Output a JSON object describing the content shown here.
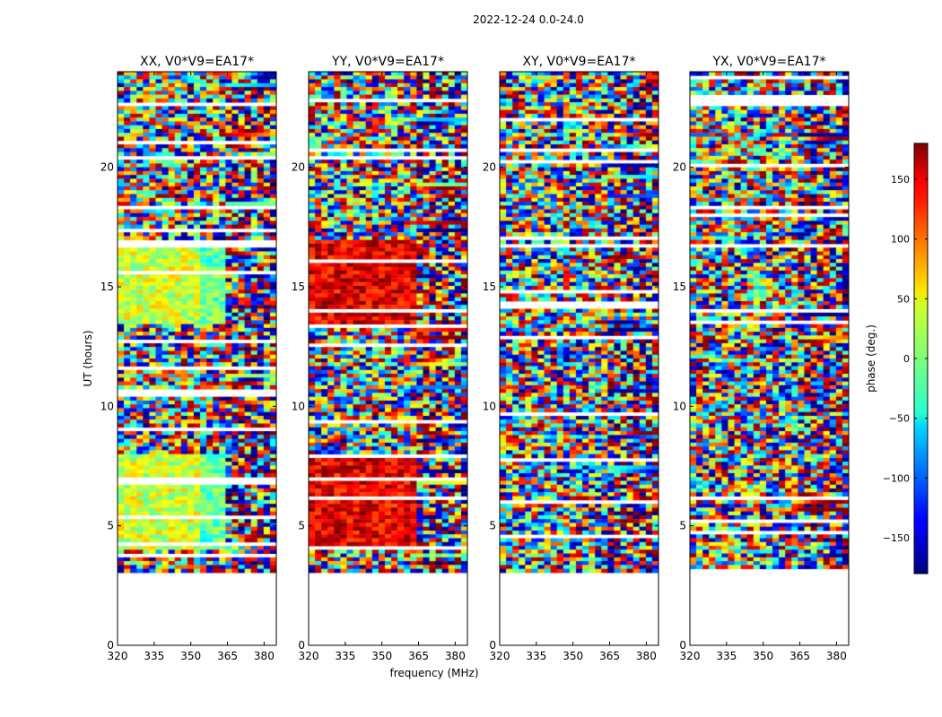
{
  "chart_data": {
    "type": "heatmap",
    "suptitle": "2022-12-24 0.0-24.0",
    "xlabel": "frequency (MHz)",
    "ylabel": "UT (hours)",
    "xlim": [
      320,
      385
    ],
    "ylim": [
      0,
      24
    ],
    "xticks": [
      320,
      335,
      350,
      365,
      380
    ],
    "yticks": [
      0,
      5,
      10,
      15,
      20
    ],
    "panels": [
      {
        "title": "XX, V0*V9=EA17*",
        "pol": "XX"
      },
      {
        "title": "YY, V0*V9=EA17*",
        "pol": "YY"
      },
      {
        "title": "XY, V0*V9=EA17*",
        "pol": "XY"
      },
      {
        "title": "YX, V0*V9=EA17*",
        "pol": "YX"
      }
    ],
    "data_start_ut": 3.1,
    "colorbar": {
      "label": "phase (deg.)",
      "range": [
        -180,
        180
      ],
      "ticks": [
        150,
        100,
        50,
        0,
        -50,
        -100,
        -150
      ],
      "colormap": "jet"
    }
  }
}
